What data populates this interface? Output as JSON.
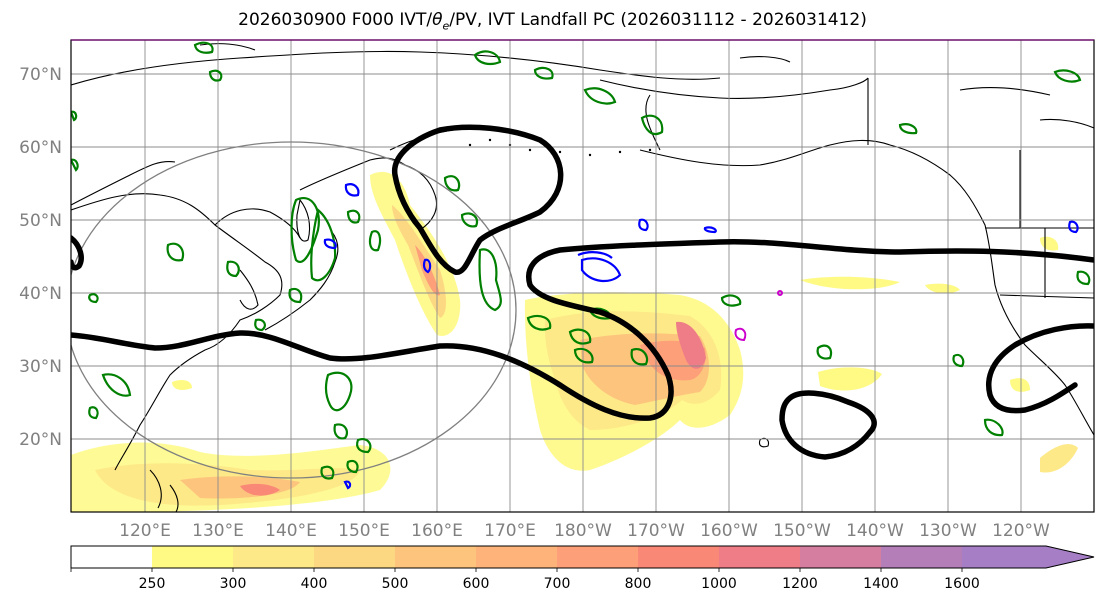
{
  "title": {
    "prefix": "2026030900 F000 IVT/",
    "theta": "θ",
    "theta_sub": "e",
    "suffix": "/PV, IVT Landfall PC (2026031112 - 2026031412)"
  },
  "lat_labels": [
    "70°N",
    "60°N",
    "50°N",
    "40°N",
    "30°N",
    "20°N"
  ],
  "lon_labels": [
    "120°E",
    "130°E",
    "140°E",
    "150°E",
    "160°E",
    "170°E",
    "180°W",
    "170°W",
    "160°W",
    "150°W",
    "140°W",
    "130°W",
    "120°W"
  ],
  "colorbar": {
    "levels": [
      "250",
      "300",
      "400",
      "500",
      "600",
      "700",
      "800",
      "1000",
      "1200",
      "1400",
      "1600"
    ],
    "colors": [
      "#ffffff",
      "#fefa84",
      "#fde987",
      "#fdd883",
      "#fdc47e",
      "#fdb37a",
      "#fd9f78",
      "#f98876",
      "#ee7d87",
      "#d67e9f",
      "#b47eb9",
      "#a57ec6"
    ]
  }
}
